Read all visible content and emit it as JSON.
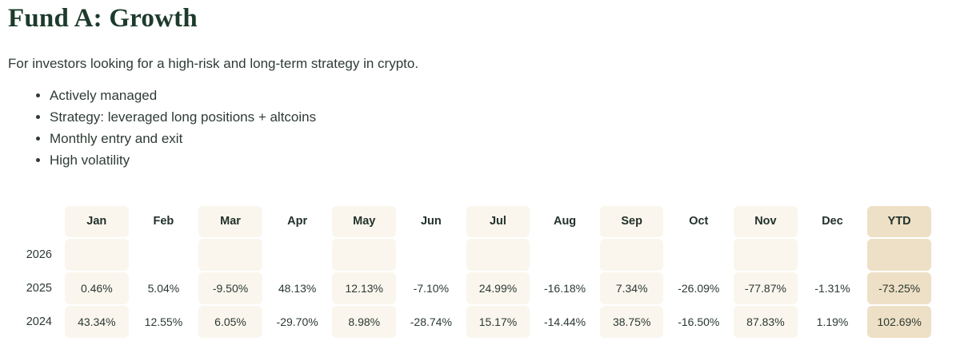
{
  "page": {
    "title": "Fund A: Growth",
    "subtitle": "For investors looking for a high-risk and long-term strategy in crypto.",
    "bullets": [
      "Actively managed",
      "Strategy: leveraged long positions + altcoins",
      "Monthly entry and exit",
      "High volatility"
    ]
  },
  "colors": {
    "title_text": "#1d3b2c",
    "body_text": "#2e3c35",
    "column_stripe": "#faf6ee",
    "column_ytd": "#eee0c6",
    "background": "#ffffff"
  },
  "returns_table": {
    "columns": [
      "Jan",
      "Feb",
      "Mar",
      "Apr",
      "May",
      "Jun",
      "Jul",
      "Aug",
      "Sep",
      "Oct",
      "Nov",
      "Dec",
      "YTD"
    ],
    "rows": [
      {
        "year": "2026",
        "values": [
          "",
          "",
          "",
          "",
          "",
          "",
          "",
          "",
          "",
          "",
          "",
          "",
          ""
        ]
      },
      {
        "year": "2025",
        "values": [
          "0.46%",
          "5.04%",
          "-9.50%",
          "48.13%",
          "12.13%",
          "-7.10%",
          "24.99%",
          "-16.18%",
          "7.34%",
          "-26.09%",
          "-77.87%",
          "-1.31%",
          "-73.25%"
        ]
      },
      {
        "year": "2024",
        "values": [
          "43.34%",
          "12.55%",
          "6.05%",
          "-29.70%",
          "8.98%",
          "-28.74%",
          "15.17%",
          "-14.44%",
          "38.75%",
          "-16.50%",
          "87.83%",
          "1.19%",
          "102.69%"
        ]
      }
    ]
  }
}
